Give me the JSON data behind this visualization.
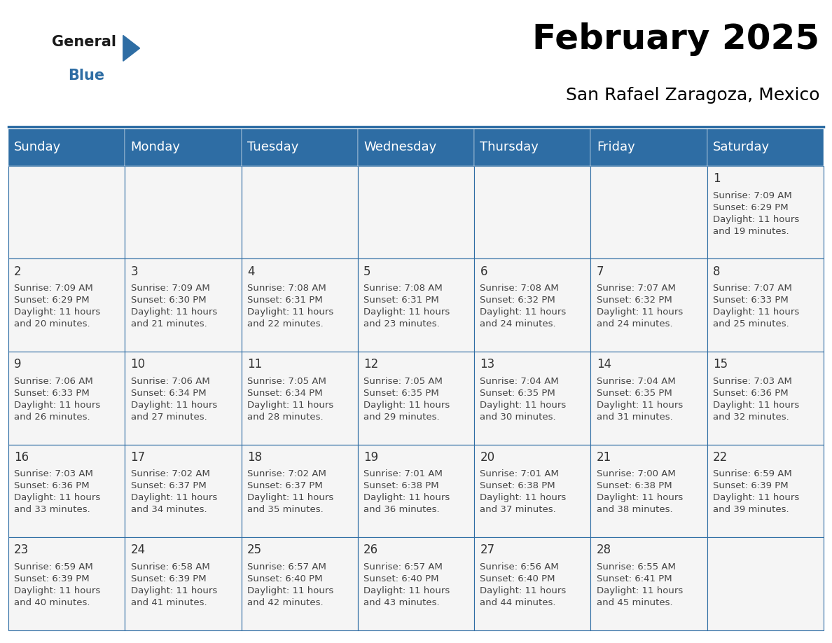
{
  "title": "February 2025",
  "subtitle": "San Rafael Zaragoza, Mexico",
  "header_color": "#2E6DA4",
  "header_text_color": "#FFFFFF",
  "cell_bg_color": "#F5F5F5",
  "grid_line_color": "#2E6DA4",
  "day_headers": [
    "Sunday",
    "Monday",
    "Tuesday",
    "Wednesday",
    "Thursday",
    "Friday",
    "Saturday"
  ],
  "title_fontsize": 36,
  "subtitle_fontsize": 18,
  "header_fontsize": 13,
  "day_num_fontsize": 12,
  "info_fontsize": 9.5,
  "calendar_data": [
    [
      null,
      null,
      null,
      null,
      null,
      null,
      {
        "day": 1,
        "sunrise": "7:09 AM",
        "sunset": "6:29 PM",
        "daylight": "11 hours and 19 minutes."
      }
    ],
    [
      {
        "day": 2,
        "sunrise": "7:09 AM",
        "sunset": "6:29 PM",
        "daylight": "11 hours and 20 minutes."
      },
      {
        "day": 3,
        "sunrise": "7:09 AM",
        "sunset": "6:30 PM",
        "daylight": "11 hours and 21 minutes."
      },
      {
        "day": 4,
        "sunrise": "7:08 AM",
        "sunset": "6:31 PM",
        "daylight": "11 hours and 22 minutes."
      },
      {
        "day": 5,
        "sunrise": "7:08 AM",
        "sunset": "6:31 PM",
        "daylight": "11 hours and 23 minutes."
      },
      {
        "day": 6,
        "sunrise": "7:08 AM",
        "sunset": "6:32 PM",
        "daylight": "11 hours and 24 minutes."
      },
      {
        "day": 7,
        "sunrise": "7:07 AM",
        "sunset": "6:32 PM",
        "daylight": "11 hours and 24 minutes."
      },
      {
        "day": 8,
        "sunrise": "7:07 AM",
        "sunset": "6:33 PM",
        "daylight": "11 hours and 25 minutes."
      }
    ],
    [
      {
        "day": 9,
        "sunrise": "7:06 AM",
        "sunset": "6:33 PM",
        "daylight": "11 hours and 26 minutes."
      },
      {
        "day": 10,
        "sunrise": "7:06 AM",
        "sunset": "6:34 PM",
        "daylight": "11 hours and 27 minutes."
      },
      {
        "day": 11,
        "sunrise": "7:05 AM",
        "sunset": "6:34 PM",
        "daylight": "11 hours and 28 minutes."
      },
      {
        "day": 12,
        "sunrise": "7:05 AM",
        "sunset": "6:35 PM",
        "daylight": "11 hours and 29 minutes."
      },
      {
        "day": 13,
        "sunrise": "7:04 AM",
        "sunset": "6:35 PM",
        "daylight": "11 hours and 30 minutes."
      },
      {
        "day": 14,
        "sunrise": "7:04 AM",
        "sunset": "6:35 PM",
        "daylight": "11 hours and 31 minutes."
      },
      {
        "day": 15,
        "sunrise": "7:03 AM",
        "sunset": "6:36 PM",
        "daylight": "11 hours and 32 minutes."
      }
    ],
    [
      {
        "day": 16,
        "sunrise": "7:03 AM",
        "sunset": "6:36 PM",
        "daylight": "11 hours and 33 minutes."
      },
      {
        "day": 17,
        "sunrise": "7:02 AM",
        "sunset": "6:37 PM",
        "daylight": "11 hours and 34 minutes."
      },
      {
        "day": 18,
        "sunrise": "7:02 AM",
        "sunset": "6:37 PM",
        "daylight": "11 hours and 35 minutes."
      },
      {
        "day": 19,
        "sunrise": "7:01 AM",
        "sunset": "6:38 PM",
        "daylight": "11 hours and 36 minutes."
      },
      {
        "day": 20,
        "sunrise": "7:01 AM",
        "sunset": "6:38 PM",
        "daylight": "11 hours and 37 minutes."
      },
      {
        "day": 21,
        "sunrise": "7:00 AM",
        "sunset": "6:38 PM",
        "daylight": "11 hours and 38 minutes."
      },
      {
        "day": 22,
        "sunrise": "6:59 AM",
        "sunset": "6:39 PM",
        "daylight": "11 hours and 39 minutes."
      }
    ],
    [
      {
        "day": 23,
        "sunrise": "6:59 AM",
        "sunset": "6:39 PM",
        "daylight": "11 hours and 40 minutes."
      },
      {
        "day": 24,
        "sunrise": "6:58 AM",
        "sunset": "6:39 PM",
        "daylight": "11 hours and 41 minutes."
      },
      {
        "day": 25,
        "sunrise": "6:57 AM",
        "sunset": "6:40 PM",
        "daylight": "11 hours and 42 minutes."
      },
      {
        "day": 26,
        "sunrise": "6:57 AM",
        "sunset": "6:40 PM",
        "daylight": "11 hours and 43 minutes."
      },
      {
        "day": 27,
        "sunrise": "6:56 AM",
        "sunset": "6:40 PM",
        "daylight": "11 hours and 44 minutes."
      },
      {
        "day": 28,
        "sunrise": "6:55 AM",
        "sunset": "6:41 PM",
        "daylight": "11 hours and 45 minutes."
      },
      null
    ]
  ]
}
